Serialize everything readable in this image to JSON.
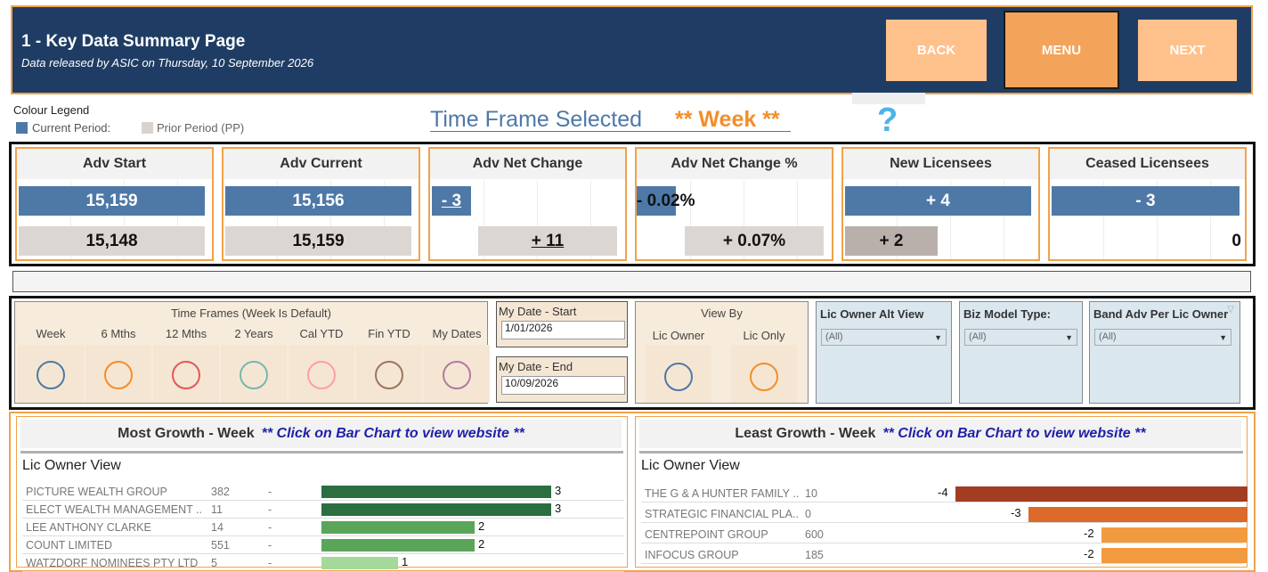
{
  "header": {
    "title": "1 - Key Data Summary Page",
    "subtitle": "Data released by ASIC on Thursday, 10 September 2026",
    "back_label": "BACK",
    "menu_label": "MENU",
    "next_label": "NEXT"
  },
  "legend": {
    "title": "Colour Legend",
    "current_label": "Current Period:",
    "prior_label": "Prior Period (PP)",
    "current_color": "#4e79a7",
    "prior_color": "#d9d3cf"
  },
  "timeframe": {
    "prefix": "Time Frame Selected",
    "value": "** Week **",
    "help_icon": "?"
  },
  "kpis": [
    {
      "title": "Adv Start",
      "current": "15,159",
      "prior": "15,148"
    },
    {
      "title": "Adv Current",
      "current": "15,156",
      "prior": "15,159"
    },
    {
      "title": "Adv Net Change",
      "current": "- 3",
      "prior": "+ 11"
    },
    {
      "title": "Adv Net Change %",
      "current": "- 0.02%",
      "prior": "+ 0.07%"
    },
    {
      "title": "New Licensees",
      "current": "+ 4",
      "prior": "+ 2"
    },
    {
      "title": "Ceased Licensees",
      "current": "- 3",
      "prior": "0"
    }
  ],
  "filters": {
    "time_frames_title": "Time Frames (Week Is Default)",
    "time_frames": [
      {
        "label": "Week",
        "color": "#4e79a7"
      },
      {
        "label": "6 Mths",
        "color": "#f28e2b"
      },
      {
        "label": "12 Mths",
        "color": "#e15759"
      },
      {
        "label": "2 Years",
        "color": "#76b7b2"
      },
      {
        "label": "Cal YTD",
        "color": "#ff9da7"
      },
      {
        "label": "Fin YTD",
        "color": "#9c755f"
      },
      {
        "label": "My Dates",
        "color": "#b07aa1"
      }
    ],
    "date_start_label": "My Date - Start",
    "date_start_value": "1/01/2026",
    "date_end_label": "My Date - End",
    "date_end_value": "10/09/2026",
    "view_by_title": "View By",
    "view_by_options": [
      {
        "label": "Lic Owner",
        "color": "#4e79a7"
      },
      {
        "label": "Lic Only",
        "color": "#f28e2b"
      }
    ],
    "dropdowns": [
      {
        "label": "Lic Owner Alt View",
        "value": "(All)"
      },
      {
        "label": "Biz Model Type:",
        "value": "(All)"
      },
      {
        "label": "Band Adv Per Lic Owner",
        "value": "(All)"
      }
    ]
  },
  "most_growth": {
    "title": "Most Growth - Week",
    "hint": "** Click on Bar Chart to view website **",
    "view_label": "Lic Owner View",
    "rows": [
      {
        "name": "PICTURE WEALTH GROUP",
        "size": "382",
        "dash": "-",
        "value": 3,
        "color": "#2b6e3f"
      },
      {
        "name": "ELECT WEALTH MANAGEMENT ..",
        "size": "11",
        "dash": "-",
        "value": 3,
        "color": "#2b6e3f"
      },
      {
        "name": "LEE ANTHONY CLARKE",
        "size": "14",
        "dash": "-",
        "value": 2,
        "color": "#5aa55a"
      },
      {
        "name": "COUNT LIMITED",
        "size": "551",
        "dash": "-",
        "value": 2,
        "color": "#5aa55a"
      },
      {
        "name": "WATZDORF NOMINEES PTY LTD",
        "size": "5",
        "dash": "-",
        "value": 1,
        "color": "#a4d99a"
      }
    ]
  },
  "least_growth": {
    "title": "Least Growth - Week",
    "hint": "** Click on Bar Chart to view website **",
    "view_label": "Lic Owner View",
    "rows": [
      {
        "name": "THE G & A HUNTER FAMILY ..",
        "size": "10",
        "value": -4,
        "color": "#a33d22"
      },
      {
        "name": "STRATEGIC FINANCIAL PLA..",
        "size": "0",
        "value": -3,
        "color": "#dc6a2b"
      },
      {
        "name": "CENTREPOINT GROUP",
        "size": "600",
        "value": -2,
        "color": "#f29a3f"
      },
      {
        "name": "INFOCUS GROUP",
        "size": "185",
        "value": -2,
        "color": "#f29a3f"
      }
    ]
  }
}
